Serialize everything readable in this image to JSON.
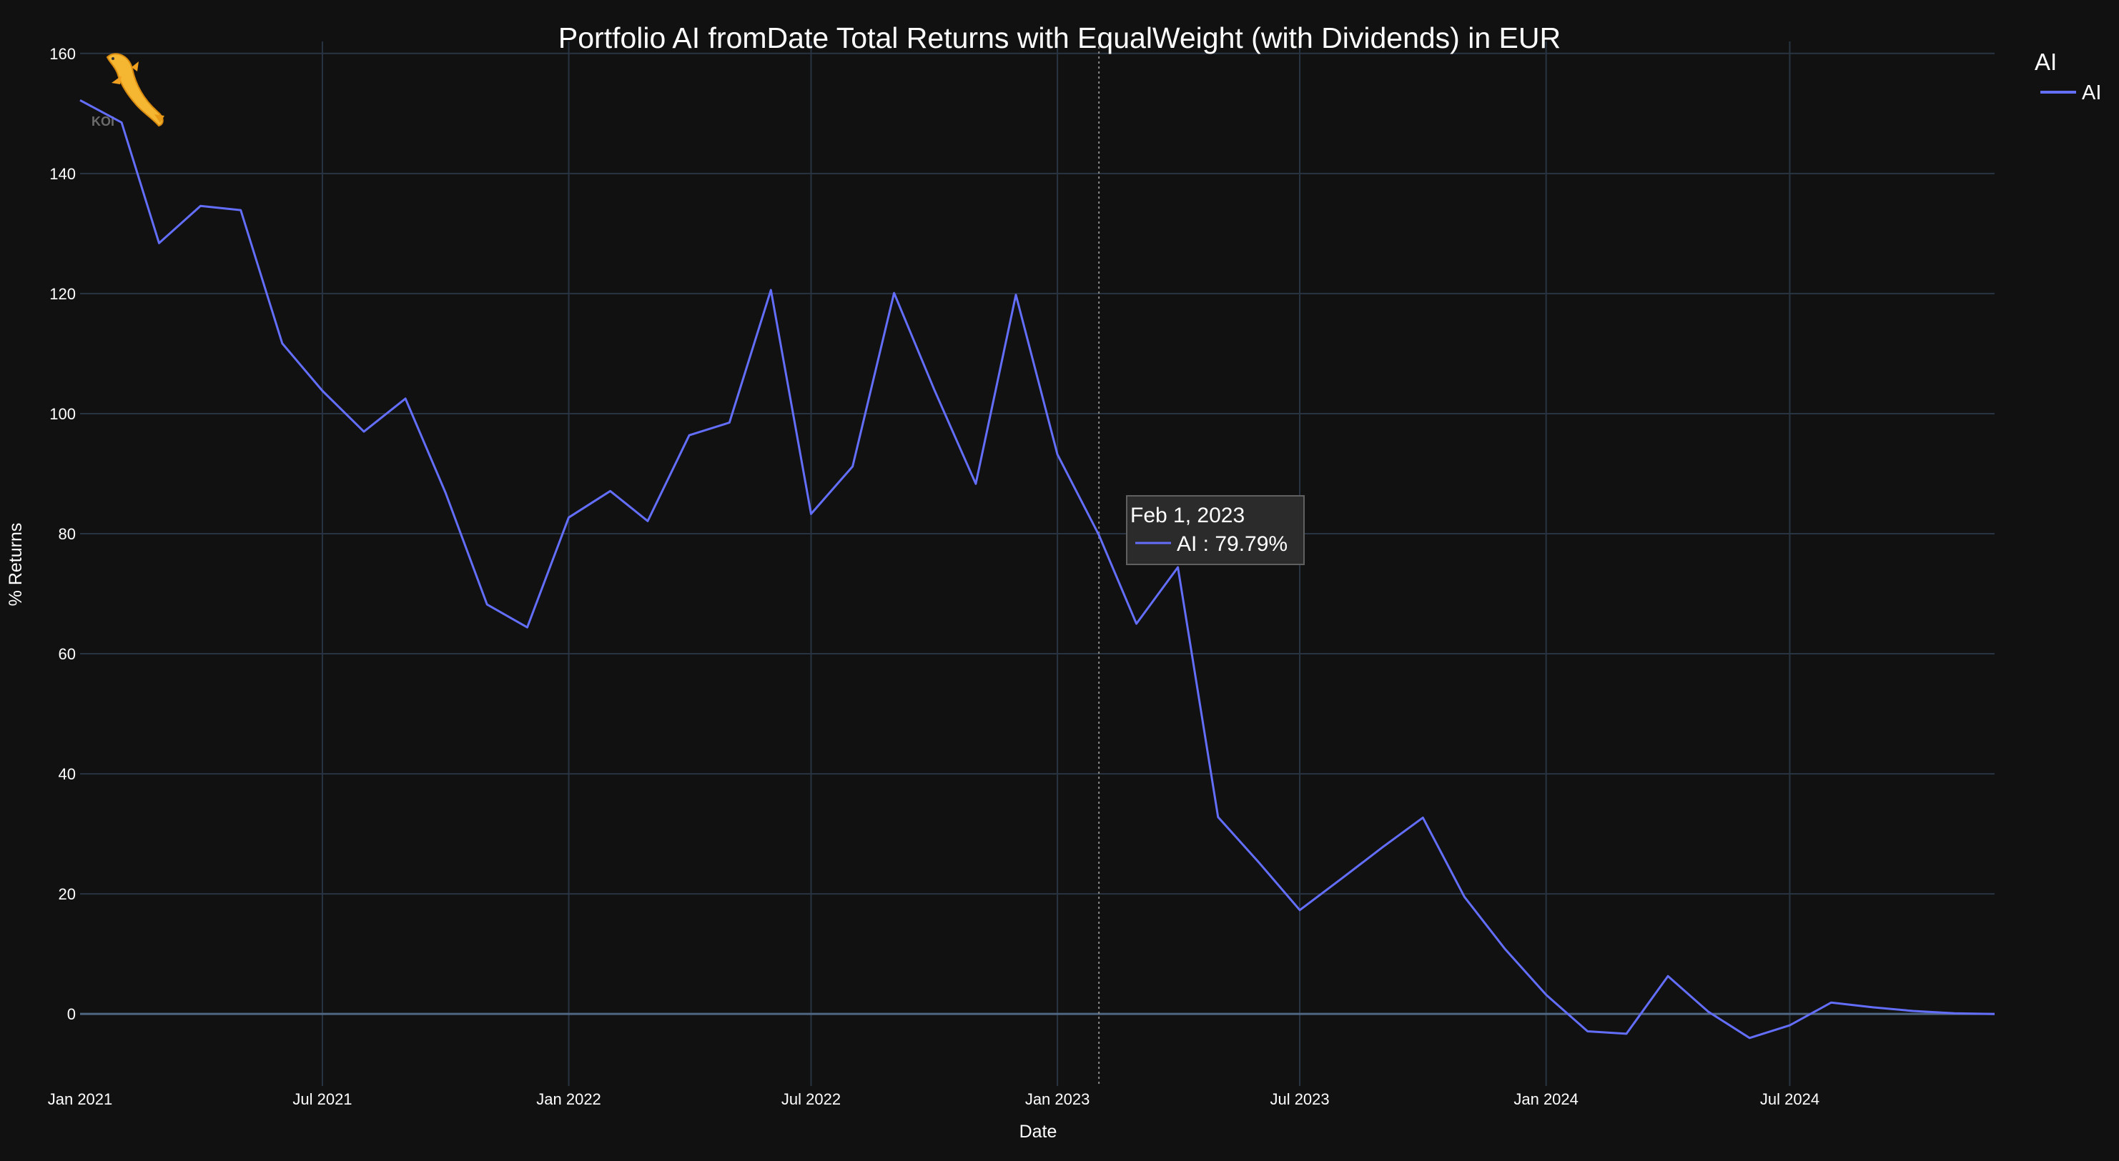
{
  "chart_data": {
    "type": "line",
    "title": "Portfolio AI fromDate Total Returns with EqualWeight (with Dividends) in EUR",
    "xlabel": "Date",
    "ylabel": "% Returns",
    "x_range": [
      "2021-01-01",
      "2024-12-01"
    ],
    "ylim": [
      -12,
      162
    ],
    "y_ticks": [
      0,
      20,
      40,
      60,
      80,
      100,
      120,
      140,
      160
    ],
    "y_tick_labels": [
      "0",
      "20",
      "40",
      "60",
      "80",
      "100",
      "120",
      "140",
      "160"
    ],
    "x_ticks": [
      "2021-01-01",
      "2021-07-01",
      "2022-01-01",
      "2022-07-01",
      "2023-01-01",
      "2023-07-01",
      "2024-01-01",
      "2024-07-01"
    ],
    "x_tick_labels": [
      "Jan 2021",
      "Jul 2021",
      "Jan 2022",
      "Jul 2022",
      "Jan 2023",
      "Jul 2023",
      "Jan 2024",
      "Jul 2024"
    ],
    "grid": true,
    "legend": {
      "title": "AI",
      "position": "top-right",
      "entries": [
        "AI"
      ]
    },
    "series": [
      {
        "name": "AI",
        "color": "#636efa",
        "x": [
          "2021-01-01",
          "2021-02-01",
          "2021-03-01",
          "2021-04-01",
          "2021-05-01",
          "2021-06-01",
          "2021-07-01",
          "2021-08-01",
          "2021-09-01",
          "2021-10-01",
          "2021-11-01",
          "2021-12-01",
          "2022-01-01",
          "2022-02-01",
          "2022-03-01",
          "2022-04-01",
          "2022-05-01",
          "2022-06-01",
          "2022-07-01",
          "2022-08-01",
          "2022-09-01",
          "2022-10-01",
          "2022-11-01",
          "2022-12-01",
          "2023-01-01",
          "2023-02-01",
          "2023-03-01",
          "2023-04-01",
          "2023-05-01",
          "2023-06-01",
          "2023-07-01",
          "2023-08-01",
          "2023-09-01",
          "2023-10-01",
          "2023-11-01",
          "2023-12-01",
          "2024-01-01",
          "2024-02-01",
          "2024-03-01",
          "2024-04-01",
          "2024-05-01",
          "2024-06-01",
          "2024-07-01",
          "2024-08-01",
          "2024-09-01",
          "2024-10-01",
          "2024-11-01",
          "2024-12-01"
        ],
        "y": [
          152.2,
          148.5,
          128.4,
          134.6,
          133.9,
          111.7,
          103.8,
          97.0,
          102.5,
          86.8,
          68.2,
          64.4,
          82.7,
          87.1,
          82.1,
          96.4,
          98.5,
          120.6,
          83.3,
          91.2,
          120.1,
          104.0,
          88.3,
          119.8,
          93.2,
          79.79,
          65.0,
          74.4,
          32.8,
          25.1,
          17.3,
          22.5,
          27.8,
          32.7,
          19.5,
          10.9,
          3.2,
          -2.9,
          -3.3,
          6.3,
          0.4,
          -4.0,
          -1.9,
          1.9,
          1.1,
          0.5,
          0.1,
          0.0
        ]
      }
    ],
    "hover": {
      "x": "2023-02-01",
      "date_label": "Feb 1, 2023",
      "series": "AI",
      "value_label": "AI : 79.79%"
    },
    "watermark": "KOI"
  }
}
